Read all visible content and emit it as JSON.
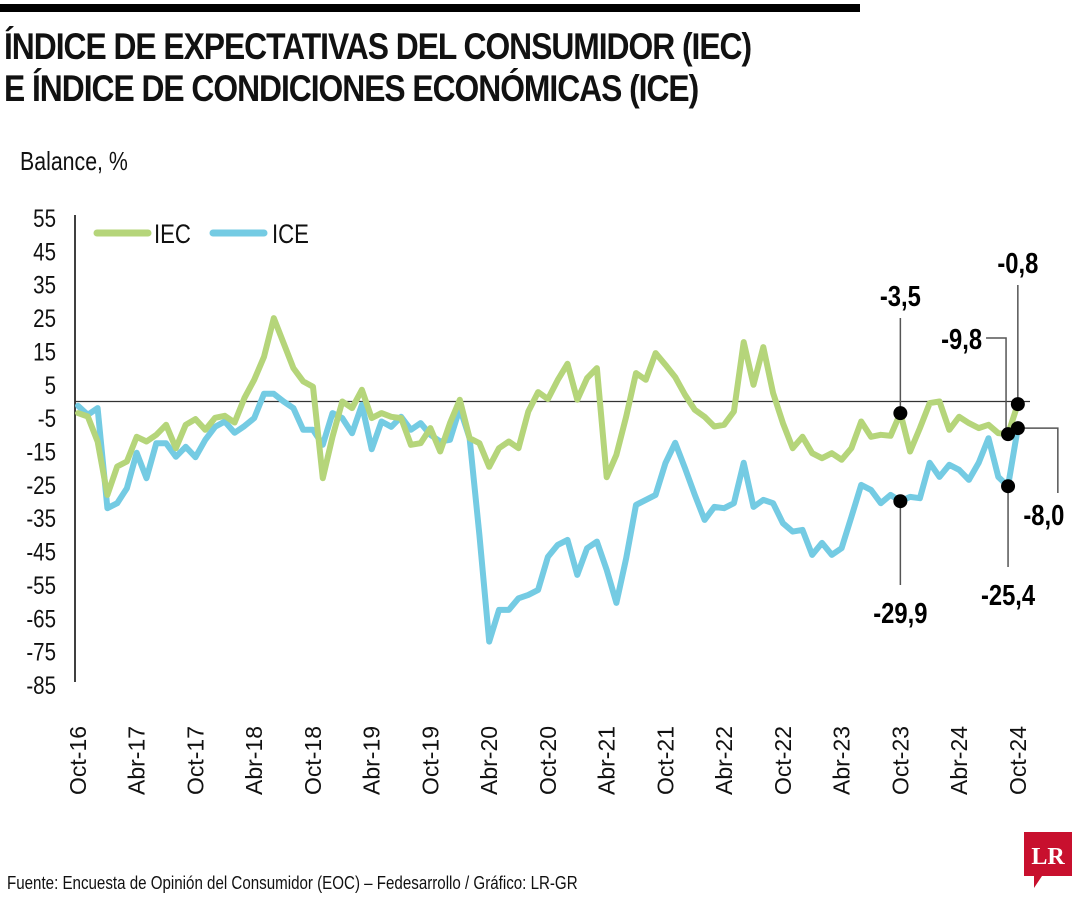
{
  "header": {
    "title_line1": "ÍNDICE DE EXPECTATIVAS DEL CONSUMIDOR (IEC)",
    "title_line2": "E ÍNDICE DE CONDICIONES ECONÓMICAS (ICE)",
    "unit_label": "Balance, %"
  },
  "footer": {
    "source": "Fuente: Encuesta de Opinión del Consumidor (EOC) – Fedesarrollo / Gráfico: LR-GR",
    "logo_text": "LR",
    "logo_color": "#c8102e"
  },
  "chart_data": {
    "type": "line",
    "title": "ÍNDICE DE EXPECTATIVAS DEL CONSUMIDOR (IEC) E ÍNDICE DE CONDICIONES ECONÓMICAS (ICE)",
    "ylabel": "Balance, %",
    "xlabel": "",
    "ylim": [
      -85,
      55
    ],
    "yticks": [
      55,
      45,
      35,
      25,
      15,
      5,
      -5,
      -15,
      -25,
      -35,
      -45,
      -55,
      -65,
      -75,
      -85
    ],
    "zero_line": true,
    "grid": false,
    "legend_position": "top-left",
    "x_start": "Oct-16",
    "x_frequency": "monthly",
    "x_count": 97,
    "xtick_labels": [
      {
        "index": 0,
        "label": "Oct-16"
      },
      {
        "index": 6,
        "label": "Abr-17"
      },
      {
        "index": 12,
        "label": "Oct-17"
      },
      {
        "index": 18,
        "label": "Abr-18"
      },
      {
        "index": 24,
        "label": "Oct-18"
      },
      {
        "index": 30,
        "label": "Abr-19"
      },
      {
        "index": 36,
        "label": "Oct-19"
      },
      {
        "index": 42,
        "label": "Abr-20"
      },
      {
        "index": 48,
        "label": "Oct-20"
      },
      {
        "index": 54,
        "label": "Abr-21"
      },
      {
        "index": 60,
        "label": "Oct-21"
      },
      {
        "index": 66,
        "label": "Abr-22"
      },
      {
        "index": 72,
        "label": "Oct-22"
      },
      {
        "index": 78,
        "label": "Abr-23"
      },
      {
        "index": 84,
        "label": "Oct-23"
      },
      {
        "index": 90,
        "label": "Abr-24"
      },
      {
        "index": 96,
        "label": "Oct-24"
      }
    ],
    "series": [
      {
        "name": "IEC",
        "color": "#b5d57a",
        "values": [
          -3.5,
          -4.5,
          -12,
          -28,
          -19.5,
          -18,
          -10.6,
          -12,
          -10,
          -7,
          -14,
          -7,
          -5.3,
          -8.5,
          -4.9,
          -4.3,
          -6.3,
          1,
          6.5,
          13.4,
          25,
          17.5,
          10,
          6,
          4.4,
          -23,
          -10.6,
          0,
          -2,
          3.5,
          -5,
          -3.5,
          -4.6,
          -5,
          -13,
          -12.5,
          -8,
          -15,
          -6.5,
          0.5,
          -11,
          -12.5,
          -19.6,
          -14,
          -12,
          -14,
          -3,
          2.8,
          0.7,
          6.4,
          11.3,
          0.5,
          7,
          10,
          -22.7,
          -16,
          -4.5,
          8.5,
          6.5,
          14.5,
          11,
          7.3,
          2,
          -2.5,
          -4.6,
          -7.5,
          -7,
          -3,
          17.8,
          5,
          16.3,
          2.5,
          -6.5,
          -14,
          -10.6,
          -15.5,
          -17,
          -15.5,
          -17.5,
          -14,
          -6,
          -10.6,
          -10,
          -10.3,
          -3.5,
          -15,
          -8,
          -0.5,
          0,
          -8.5,
          -4.6,
          -6.5,
          -8,
          -7,
          -9.5,
          -9.8,
          -0.8
        ]
      },
      {
        "name": "ICE",
        "color": "#74cbe3",
        "values": [
          -1.3,
          -4,
          -2,
          -32,
          -30.5,
          -26,
          -15.4,
          -23,
          -12.5,
          -12.5,
          -16.6,
          -13.6,
          -16.7,
          -11.5,
          -7.6,
          -6,
          -9.4,
          -7.4,
          -5,
          2.3,
          2.3,
          0,
          -2,
          -8.5,
          -8.5,
          -13,
          -3.5,
          -5,
          -9.5,
          -1,
          -14.3,
          -6,
          -7.6,
          -4.6,
          -8.5,
          -6.5,
          -10,
          -12,
          -11.5,
          -2,
          -11,
          -40,
          -72,
          -62.5,
          -62.5,
          -59,
          -58,
          -56.5,
          -46.6,
          -43,
          -41.5,
          -52,
          -44,
          -42,
          -50.5,
          -60.4,
          -47,
          -31,
          -29.5,
          -28,
          -18.5,
          -12.4,
          -20,
          -28,
          -35.5,
          -31.6,
          -32,
          -30.5,
          -18.4,
          -31.6,
          -29.5,
          -30.5,
          -36.5,
          -39,
          -38.5,
          -46,
          -42.4,
          -46,
          -44,
          -34.6,
          -25,
          -26.5,
          -30.5,
          -28,
          -29.9,
          -28.6,
          -29,
          -18.4,
          -22.6,
          -19,
          -20.5,
          -23.5,
          -18.4,
          -11,
          -22.6,
          -25.4,
          -8.0
        ]
      }
    ],
    "annotations": [
      {
        "series": "IEC",
        "index": 84,
        "label": "-3,5",
        "placement": "above"
      },
      {
        "series": "IEC",
        "index": 95,
        "label": "-9,8",
        "placement": "above-left"
      },
      {
        "series": "IEC",
        "index": 96,
        "label": "-0,8",
        "placement": "above"
      },
      {
        "series": "ICE",
        "index": 84,
        "label": "-29,9",
        "placement": "below"
      },
      {
        "series": "ICE",
        "index": 95,
        "label": "-25,4",
        "placement": "below"
      },
      {
        "series": "ICE",
        "index": 96,
        "label": "-8,0",
        "placement": "below-right"
      }
    ]
  }
}
